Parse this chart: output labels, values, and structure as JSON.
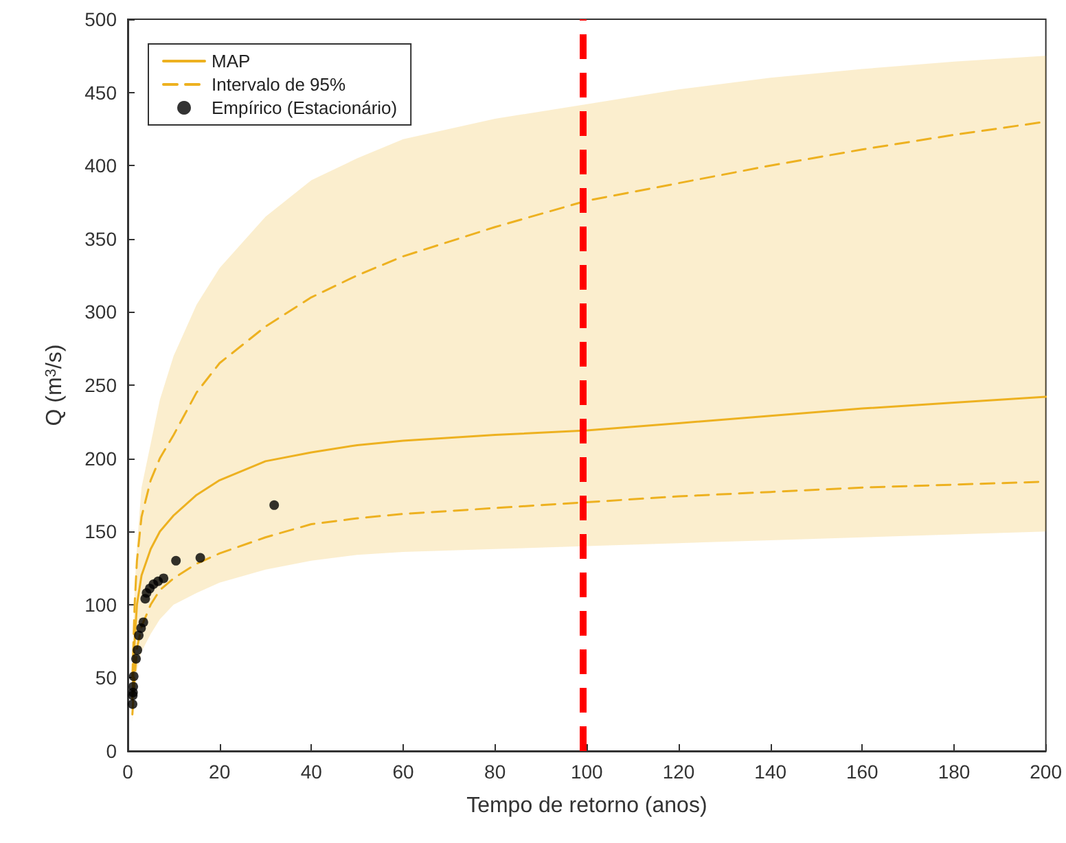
{
  "chart_data": {
    "type": "line",
    "xlabel": "Tempo de retorno (anos)",
    "ylabel": "Q (m$^{3}$/s)",
    "xlim": [
      0,
      200
    ],
    "xticks": [
      0,
      20,
      40,
      60,
      80,
      100,
      120,
      140,
      160,
      180,
      200
    ],
    "ylim": [
      0,
      500
    ],
    "yticks": [
      0,
      50,
      100,
      150,
      200,
      250,
      300,
      350,
      400,
      450,
      500
    ],
    "grid": false,
    "legend": "top left",
    "series": [
      {
        "name": "MAP",
        "color": "#edb120",
        "line_style": "solid",
        "marker": "none",
        "x": [
          1.01,
          1.5,
          2,
          3,
          5,
          7,
          10,
          15,
          20,
          30,
          40,
          50,
          60,
          80,
          100,
          120,
          140,
          160,
          180,
          200
        ],
        "values": [
          35,
          75,
          100,
          120,
          138,
          150,
          161,
          175,
          185,
          198,
          204,
          209,
          212,
          216,
          219,
          224,
          229,
          234,
          238,
          242
        ],
        "lower": [
          20,
          40,
          55,
          68,
          80,
          90,
          100,
          108,
          115,
          124,
          130,
          134,
          136,
          138,
          140,
          142,
          144,
          146,
          148,
          150
        ],
        "upper": [
          60,
          110,
          140,
          180,
          210,
          240,
          270,
          305,
          330,
          365,
          390,
          405,
          418,
          432,
          442,
          452,
          460,
          466,
          471,
          475
        ]
      },
      {
        "name": "Intervalo de 95%",
        "color": "#edb120",
        "line_style": "dashed",
        "marker": "none",
        "x": [
          1.01,
          1.5,
          2,
          3,
          5,
          7,
          10,
          15,
          20,
          30,
          40,
          50,
          60,
          80,
          100,
          120,
          140,
          160,
          180,
          200
        ],
        "values": [
          50,
          100,
          130,
          160,
          185,
          200,
          216,
          245,
          265,
          290,
          310,
          325,
          338,
          358,
          376,
          388,
          400,
          411,
          421,
          430
        ]
      },
      {
        "color": "#edb120",
        "line_style": "dashed",
        "marker": "none",
        "x": [
          1.01,
          1.5,
          2,
          3,
          5,
          7,
          10,
          15,
          20,
          30,
          40,
          50,
          60,
          80,
          100,
          120,
          140,
          160,
          180,
          200
        ],
        "values": [
          25,
          50,
          70,
          85,
          100,
          110,
          118,
          128,
          135,
          146,
          155,
          159,
          162,
          166,
          170,
          174,
          177,
          180,
          182,
          184
        ]
      },
      {
        "name": "Empírico (Estacionário)",
        "type": "scatter",
        "color": "#000000",
        "marker": "circle",
        "x": [
          1.05,
          1.1,
          1.15,
          1.2,
          1.3,
          1.8,
          2.1,
          2.4,
          2.9,
          3.4,
          3.8,
          4.1,
          4.8,
          5.6,
          6.6,
          7.8,
          10.5,
          15.8,
          31.9
        ],
        "values": [
          32,
          38,
          40,
          44,
          51,
          63,
          69,
          79,
          84,
          88,
          104,
          108,
          111,
          114,
          116,
          118,
          130,
          132,
          168
        ]
      }
    ],
    "ref_lines": [
      {
        "axis": "x",
        "value": 99,
        "color": "#ff0000",
        "line_style": "dashed"
      }
    ]
  }
}
